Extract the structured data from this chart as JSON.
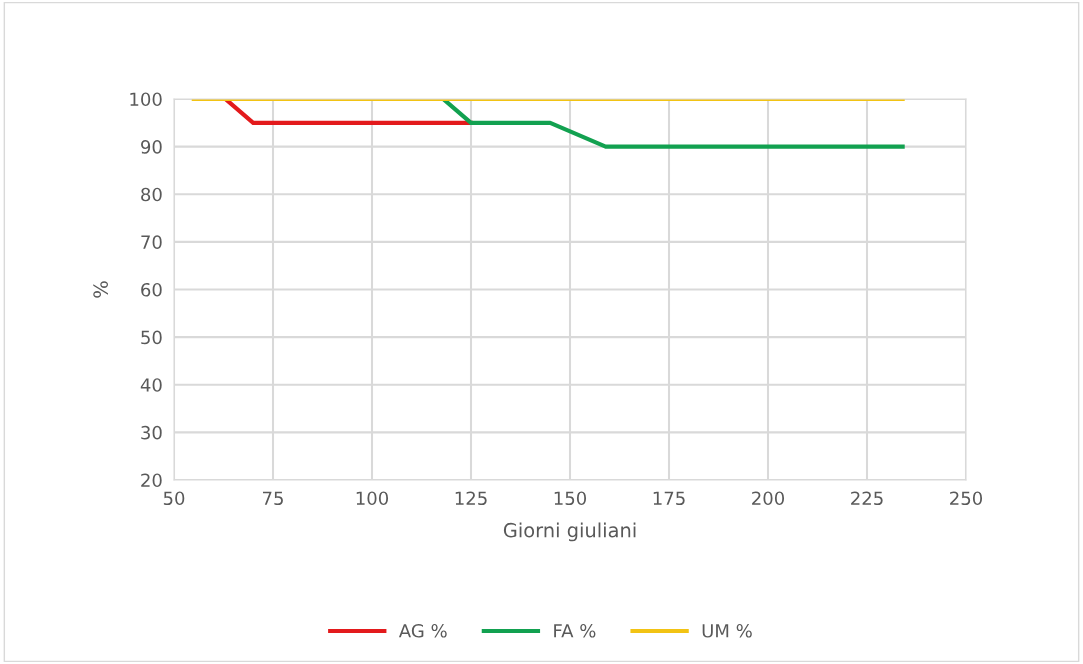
{
  "chart_data": {
    "type": "line",
    "xlabel": "Giorni giuliani",
    "ylabel": "%",
    "series": [
      {
        "name": "AG %",
        "color": "#e31a1c",
        "x": [
          63,
          70,
          125
        ],
        "values": [
          100,
          95,
          95
        ]
      },
      {
        "name": "FA %",
        "color": "#12a150",
        "x": [
          118,
          125,
          145,
          159,
          234
        ],
        "values": [
          100,
          95,
          95,
          90,
          90
        ]
      },
      {
        "name": "UM %",
        "color": "#f2c314",
        "x": [
          55,
          234
        ],
        "values": [
          100,
          100
        ]
      }
    ],
    "xlim": [
      50,
      250
    ],
    "xticks": [
      50,
      75,
      100,
      125,
      150,
      175,
      200,
      225,
      250
    ],
    "ylim": [
      20,
      100
    ],
    "yticks": [
      20,
      30,
      40,
      50,
      60,
      70,
      80,
      90,
      100
    ],
    "grid": true,
    "legend": "bottom",
    "marker": "none",
    "line_style": "solid"
  }
}
